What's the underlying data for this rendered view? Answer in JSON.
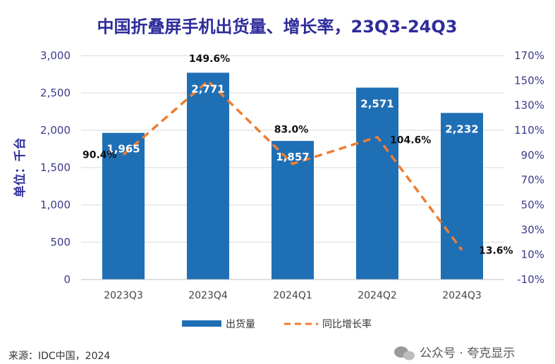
{
  "chart_data": {
    "type": "bar",
    "title": "中国折叠屏手机出货量、增长率，23Q3-24Q3",
    "ylabel": "单位：千台",
    "categories": [
      "2023Q3",
      "2023Q4",
      "2024Q1",
      "2024Q2",
      "2024Q3"
    ],
    "series": [
      {
        "name": "出货量",
        "type": "bar",
        "axis": "left",
        "color": "#1f6fb5",
        "values": [
          1965,
          2771,
          1857,
          2571,
          2232
        ],
        "labels": [
          "1,965",
          "2,771",
          "1,857",
          "2,571",
          "2,232"
        ]
      },
      {
        "name": "同比增长率",
        "type": "line",
        "axis": "right",
        "color": "#ee7d31",
        "dashed": true,
        "values": [
          90.4,
          149.6,
          83.0,
          104.6,
          13.6
        ],
        "labels": [
          "90.4%",
          "149.6%",
          "83.0%",
          "104.6%",
          "13.6%"
        ]
      }
    ],
    "ylim": [
      0,
      3000
    ],
    "y_ticks": [
      0,
      500,
      1000,
      1500,
      2000,
      2500,
      3000
    ],
    "y_tick_labels": [
      "0",
      "500",
      "1,000",
      "1,500",
      "2,000",
      "2,500",
      "3,000"
    ],
    "y2lim": [
      -10,
      170
    ],
    "y2_ticks": [
      -10,
      10,
      30,
      50,
      70,
      90,
      110,
      130,
      150,
      170
    ],
    "y2_tick_labels": [
      "-10%",
      "10%",
      "30%",
      "50%",
      "70%",
      "90%",
      "110%",
      "130%",
      "150%",
      "170%"
    ],
    "grid": true,
    "legend_position": "bottom"
  },
  "footer": {
    "source": "来源：IDC中国，2024",
    "watermark": "公众号 · 夸克显示"
  }
}
